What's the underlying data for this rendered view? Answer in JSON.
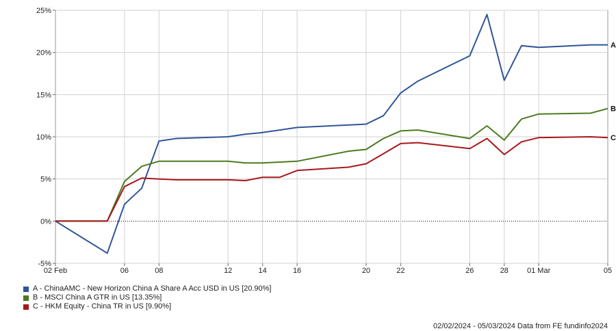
{
  "chart_data": {
    "type": "line",
    "x_ticks": [
      "02 Feb",
      "06",
      "08",
      "12",
      "14",
      "16",
      "20",
      "22",
      "26",
      "28",
      "01 Mar",
      "05"
    ],
    "y_ticks": [
      "25%",
      "20%",
      "15%",
      "10%",
      "5%",
      "0%",
      "-5%"
    ],
    "ylim": [
      -5,
      25
    ],
    "grid": true,
    "x": [
      "2024-02-02",
      "2024-02-05",
      "2024-02-06",
      "2024-02-07",
      "2024-02-08",
      "2024-02-09",
      "2024-02-12",
      "2024-02-13",
      "2024-02-14",
      "2024-02-15",
      "2024-02-16",
      "2024-02-19",
      "2024-02-20",
      "2024-02-21",
      "2024-02-22",
      "2024-02-23",
      "2024-02-26",
      "2024-02-27",
      "2024-02-28",
      "2024-02-29",
      "2024-03-01",
      "2024-03-04",
      "2024-03-05"
    ],
    "series": [
      {
        "label": "A",
        "color": "#2f5597",
        "values": [
          0,
          -3.8,
          2.0,
          3.9,
          9.5,
          9.8,
          10.0,
          10.3,
          10.5,
          10.8,
          11.1,
          11.4,
          11.5,
          12.5,
          15.2,
          16.6,
          19.6,
          24.5,
          16.7,
          20.8,
          20.6,
          20.9,
          20.9
        ]
      },
      {
        "label": "B",
        "color": "#4b7a1e",
        "values": [
          0,
          0,
          4.7,
          6.5,
          7.1,
          7.1,
          7.1,
          6.9,
          6.9,
          7.0,
          7.1,
          8.3,
          8.5,
          9.8,
          10.7,
          10.8,
          9.8,
          11.3,
          9.6,
          12.1,
          12.7,
          12.8,
          13.35
        ]
      },
      {
        "label": "C",
        "color": "#a8171a",
        "values": [
          0,
          0,
          4.1,
          5.1,
          5.0,
          4.9,
          4.9,
          4.8,
          5.2,
          5.2,
          6.0,
          6.4,
          6.8,
          8.0,
          9.2,
          9.3,
          8.6,
          9.8,
          7.9,
          9.4,
          9.9,
          10.0,
          9.9
        ]
      }
    ]
  },
  "legend": [
    {
      "text": "A - ChinaAMC - New Horizon China A Share A Acc USD in US [20.90%]",
      "color": "#2f5597"
    },
    {
      "text": "B - MSCI China A GTR in US [13.35%]",
      "color": "#4b7a1e"
    },
    {
      "text": "C - HKM Equity - China TR in US [9.90%]",
      "color": "#a8171a"
    }
  ],
  "footer": "02/02/2024 - 05/03/2024 Data from FE fundinfo2024"
}
